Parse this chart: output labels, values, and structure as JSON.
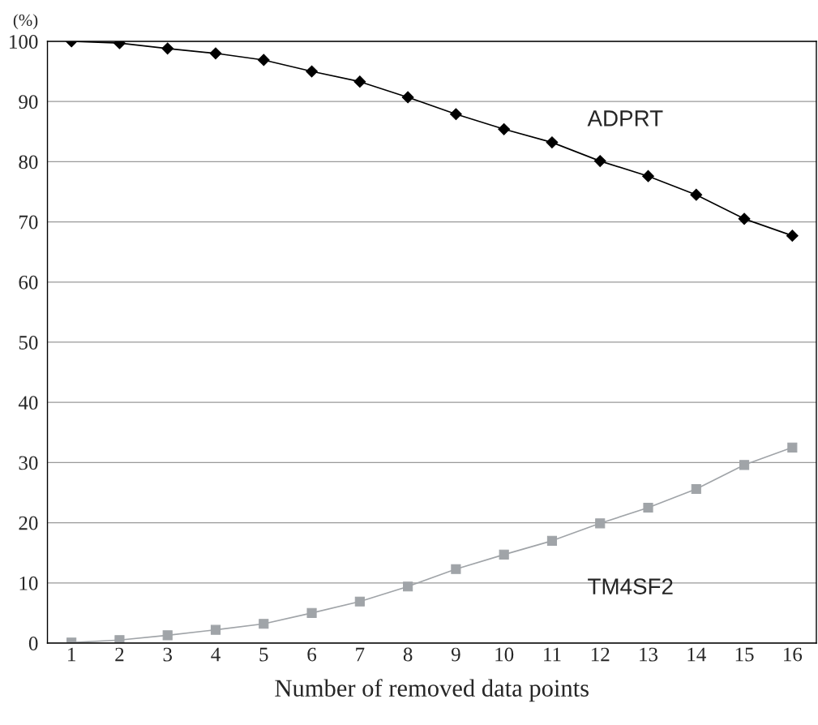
{
  "chart_data": {
    "type": "line",
    "ylabel": "(%)",
    "xlabel": "Number of removed data points",
    "categories": [
      "1",
      "2",
      "3",
      "4",
      "5",
      "6",
      "7",
      "8",
      "9",
      "10",
      "11",
      "12",
      "13",
      "14",
      "15",
      "16"
    ],
    "ylim": [
      0,
      100
    ],
    "yticks": [
      0,
      10,
      20,
      30,
      40,
      50,
      60,
      70,
      80,
      90,
      100
    ],
    "grid": "y",
    "legend": false,
    "series": [
      {
        "name": "ADPRT",
        "color": "#000000",
        "marker": "diamond",
        "values": [
          100,
          99.7,
          98.8,
          98.0,
          96.9,
          95.0,
          93.3,
          90.7,
          87.9,
          85.4,
          83.2,
          80.1,
          77.6,
          74.5,
          70.5,
          67.7
        ]
      },
      {
        "name": "TM4SF2",
        "color": "#a0a4a8",
        "marker": "square",
        "values": [
          0.1,
          0.5,
          1.3,
          2.2,
          3.2,
          5.0,
          6.9,
          9.4,
          12.3,
          14.7,
          17.0,
          19.9,
          22.5,
          25.6,
          29.6,
          32.5
        ]
      }
    ]
  }
}
